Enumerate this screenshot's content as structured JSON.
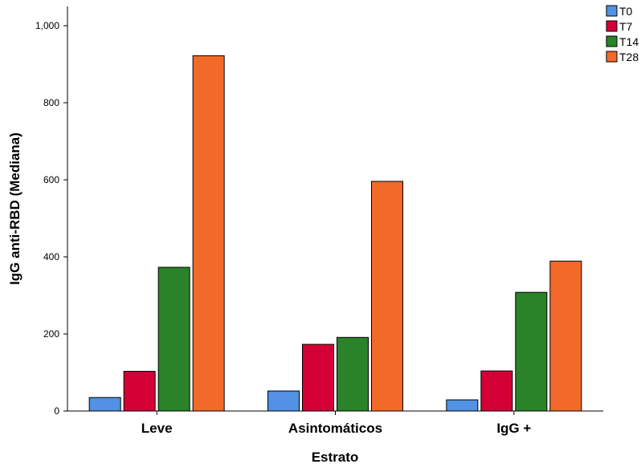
{
  "chart_data": {
    "type": "bar",
    "title": "",
    "xlabel": "Estrato",
    "ylabel": "IgG anti-RBD (Mediana)",
    "categories": [
      "Leve",
      "Asintomáticos",
      "IgG +"
    ],
    "series": [
      {
        "name": "T0",
        "values": [
          35,
          52,
          29
        ],
        "color": "#5291e3"
      },
      {
        "name": "T7",
        "values": [
          103,
          173,
          104
        ],
        "color": "#d40035"
      },
      {
        "name": "T14",
        "values": [
          373,
          191,
          308
        ],
        "color": "#2a8229"
      },
      {
        "name": "T28",
        "values": [
          922,
          596,
          389
        ],
        "color": "#f26a29"
      }
    ],
    "ylim": [
      0,
      1050
    ],
    "yticks": [
      0,
      200,
      400,
      600,
      800,
      1000
    ],
    "ytick_labels": [
      "0",
      "200",
      "400",
      "600",
      "800",
      "1,000"
    ],
    "grid": false,
    "legend_position": "top-right"
  }
}
